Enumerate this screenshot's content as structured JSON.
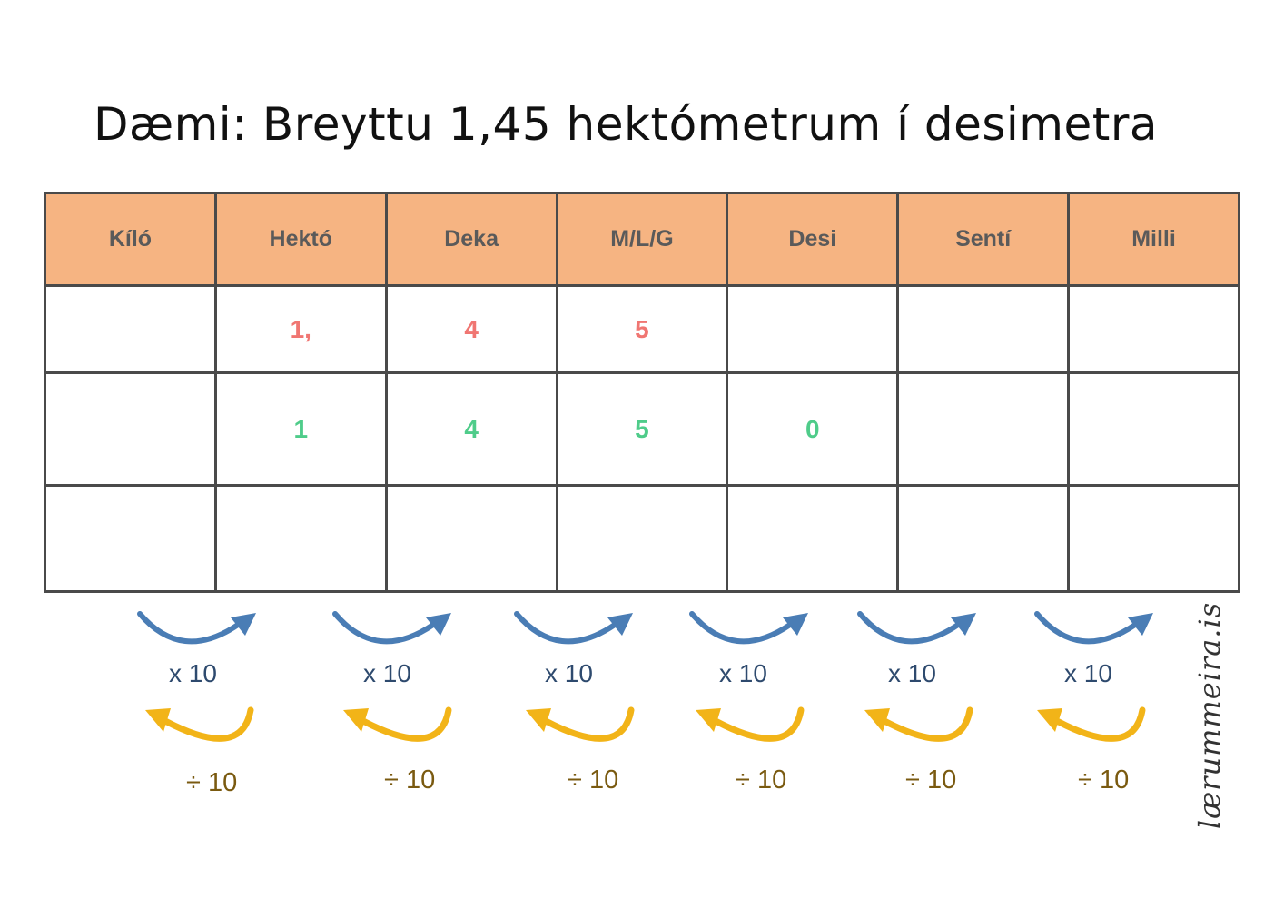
{
  "title": "Dæmi: Breyttu 1,45 hektómetrum í desimetra",
  "table": {
    "headers": [
      "Kíló",
      "Hektó",
      "Deka",
      "M/L/G",
      "Desi",
      "Sentí",
      "Milli"
    ],
    "rows": [
      [
        "",
        "1,",
        "4",
        "5",
        "",
        "",
        ""
      ],
      [
        "",
        "1",
        "4",
        "5",
        "0",
        "",
        ""
      ],
      [
        "",
        "",
        "",
        "",
        "",
        "",
        ""
      ]
    ]
  },
  "conversions": [
    {
      "multiply": "x 10",
      "divide": "÷ 10"
    },
    {
      "multiply": "x 10",
      "divide": "÷ 10"
    },
    {
      "multiply": "x 10",
      "divide": "÷ 10"
    },
    {
      "multiply": "x 10",
      "divide": "÷ 10"
    },
    {
      "multiply": "x 10",
      "divide": "÷ 10"
    },
    {
      "multiply": "x 10",
      "divide": "÷ 10"
    }
  ],
  "watermark": "lærummeira.is",
  "colors": {
    "header_bg": "#f6b482",
    "first_value": "#f07672",
    "converted_value": "#4fcc8a",
    "multiply_arrow": "#4a7db5",
    "divide_arrow": "#f2b418"
  },
  "icons": {
    "multiply": "curved-arrow-right-icon",
    "divide": "curved-arrow-left-icon"
  }
}
